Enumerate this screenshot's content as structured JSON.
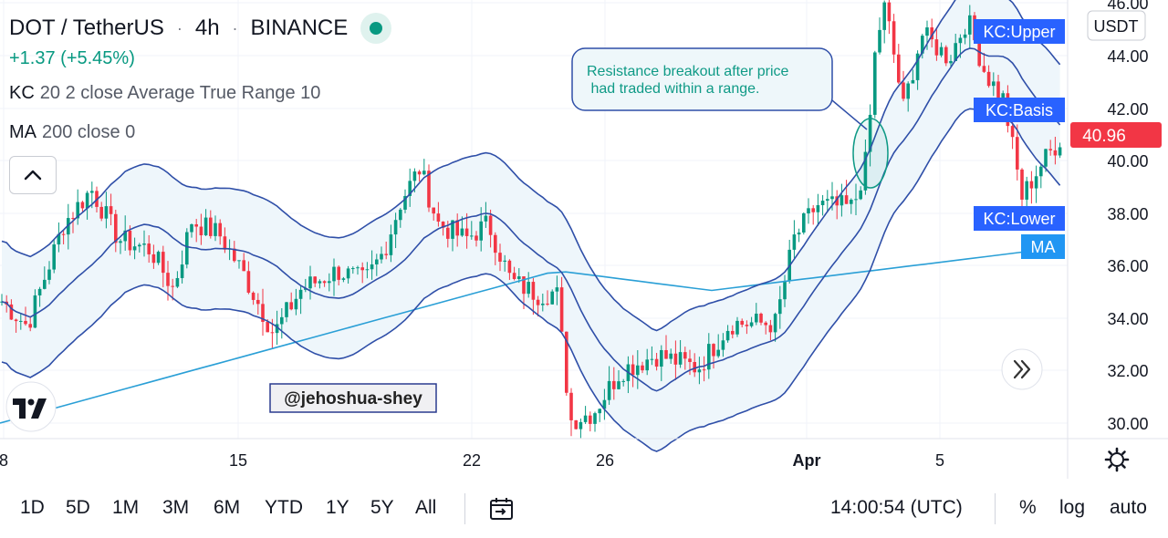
{
  "header": {
    "symbol": "DOT / TetherUS",
    "interval": "4h",
    "exchange": "BINANCE",
    "change": "+1.37 (+5.45%)"
  },
  "legend": {
    "kc_name": "KC",
    "kc_params": "20 2 close Average True Range 10",
    "ma_name": "MA",
    "ma_params": "200 close 0"
  },
  "price_axis": {
    "currency": "USDT",
    "ticks": [
      "46.00",
      "44.00",
      "42.00",
      "40.00",
      "38.00",
      "36.00",
      "34.00",
      "32.00",
      "30.00"
    ],
    "current_price": "40.96"
  },
  "time_axis": {
    "labels": [
      "8",
      "15",
      "22",
      "26",
      "Apr",
      "5"
    ]
  },
  "series_labels": {
    "upper": "KC:Upper",
    "basis": "KC:Basis",
    "lower": "KC:Lower",
    "ma": "MA"
  },
  "annotation": {
    "line1": "Resistance breakout after price",
    "line2": " had traded within a range."
  },
  "watermark": "@jehoshua-shey",
  "bottom_bar": {
    "timeframes": [
      "1D",
      "5D",
      "1M",
      "3M",
      "6M",
      "YTD",
      "1Y",
      "5Y",
      "All"
    ],
    "time": "14:00:54 (UTC)",
    "percent": "%",
    "log": "log",
    "auto": "auto"
  },
  "colors": {
    "up": "#089981",
    "down": "#f23645",
    "channel": "#2f4fa8",
    "channel_fill": "#eef6fb",
    "ma": "#2a9fd6",
    "label_bg": "#2962ff",
    "ma_label_bg": "#2196f3",
    "price_tag": "#f23645",
    "annotation": "#0f9a86"
  },
  "icons": {
    "collapse": "chevron-up-icon",
    "scroll": "double-chevron-right-icon",
    "settings": "gear-icon",
    "date_range": "calendar-arrow-icon",
    "logo": "tradingview-logo-icon"
  }
}
